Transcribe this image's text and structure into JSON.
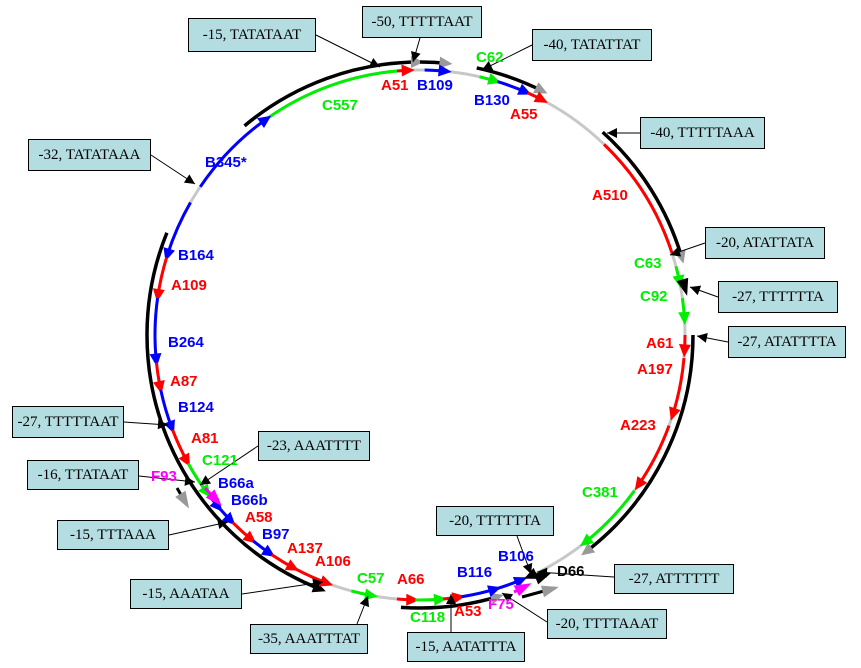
{
  "colors": {
    "A": "#ff0000",
    "B": "#0000ff",
    "C": "#00ee00",
    "D": "#000000",
    "F": "#ff00ff",
    "backbone": "#c8c8c8",
    "strand": "#000000",
    "arrow_gray": "#999999",
    "box_fill": "#b4dde1"
  },
  "genes": [
    {
      "name": "A51",
      "type": "A"
    },
    {
      "name": "B109",
      "type": "B"
    },
    {
      "name": "C62",
      "type": "C"
    },
    {
      "name": "B130",
      "type": "B"
    },
    {
      "name": "A55",
      "type": "A"
    },
    {
      "name": "C557",
      "type": "C"
    },
    {
      "name": "B345*",
      "type": "B"
    },
    {
      "name": "A510",
      "type": "A"
    },
    {
      "name": "C63",
      "type": "C"
    },
    {
      "name": "C92",
      "type": "C"
    },
    {
      "name": "A61",
      "type": "A"
    },
    {
      "name": "A197",
      "type": "A"
    },
    {
      "name": "A223",
      "type": "A"
    },
    {
      "name": "C381",
      "type": "C"
    },
    {
      "name": "B164",
      "type": "B"
    },
    {
      "name": "A109",
      "type": "A"
    },
    {
      "name": "B264",
      "type": "B"
    },
    {
      "name": "A87",
      "type": "A"
    },
    {
      "name": "B124",
      "type": "B"
    },
    {
      "name": "A81",
      "type": "A"
    },
    {
      "name": "C121",
      "type": "C"
    },
    {
      "name": "F93",
      "type": "F"
    },
    {
      "name": "B66a",
      "type": "B"
    },
    {
      "name": "B66b",
      "type": "B"
    },
    {
      "name": "A58",
      "type": "A"
    },
    {
      "name": "B97",
      "type": "B"
    },
    {
      "name": "A137",
      "type": "A"
    },
    {
      "name": "A106",
      "type": "A"
    },
    {
      "name": "C57",
      "type": "C"
    },
    {
      "name": "A66",
      "type": "A"
    },
    {
      "name": "C118",
      "type": "C"
    },
    {
      "name": "A53",
      "type": "A"
    },
    {
      "name": "F75",
      "type": "F"
    },
    {
      "name": "B116",
      "type": "B"
    },
    {
      "name": "B106",
      "type": "B"
    },
    {
      "name": "D66",
      "type": "D"
    }
  ],
  "promoters": [
    {
      "text": "-15, TATATAAT"
    },
    {
      "text": "-50, TTTTTAAT"
    },
    {
      "text": "-40, TATATTAT"
    },
    {
      "text": "-40, TTTTTAAA"
    },
    {
      "text": "-20, ATATTATA"
    },
    {
      "text": "-27, TTTTTTA"
    },
    {
      "text": "-27, ATATTTTA"
    },
    {
      "text": "-32, TATATAAA"
    },
    {
      "text": "-27, TTTTTAAT"
    },
    {
      "text": "-23, AAATTTT"
    },
    {
      "text": "-16, TTATAAT"
    },
    {
      "text": "-15, TTTAAA"
    },
    {
      "text": "-15, AAATAA"
    },
    {
      "text": "-35, AAATTTAT"
    },
    {
      "text": "-15, AATATTTA"
    },
    {
      "text": "-20, TTTTTTA"
    },
    {
      "text": "-27, ATTTTTT"
    },
    {
      "text": "-20, TTTTAAAT"
    }
  ]
}
